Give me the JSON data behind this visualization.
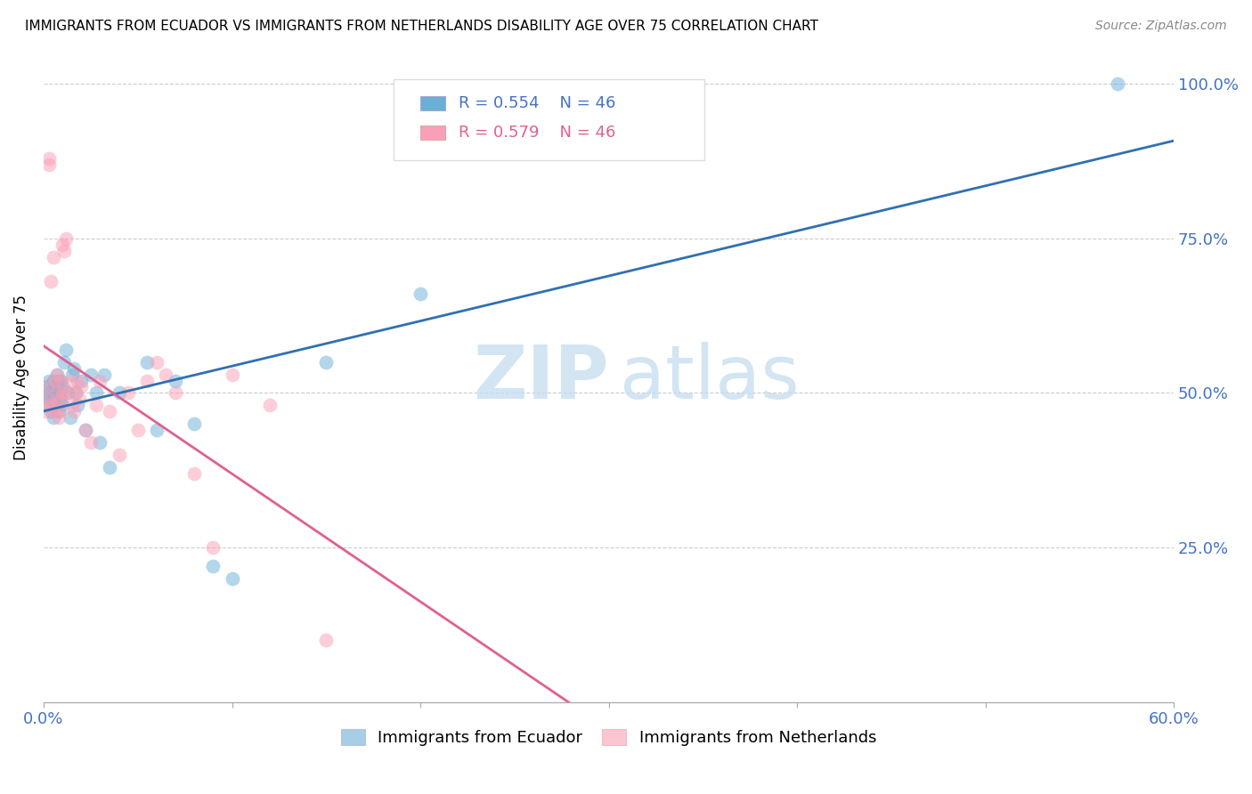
{
  "title": "IMMIGRANTS FROM ECUADOR VS IMMIGRANTS FROM NETHERLANDS DISABILITY AGE OVER 75 CORRELATION CHART",
  "source": "Source: ZipAtlas.com",
  "ylabel": "Disability Age Over 75",
  "color_ecuador": "#6baed6",
  "color_netherlands": "#fa9fb5",
  "color_ecuador_line": "#3070b0",
  "color_netherlands_line": "#e06090",
  "ecuador_x": [
    0.001,
    0.002,
    0.002,
    0.003,
    0.003,
    0.004,
    0.004,
    0.005,
    0.005,
    0.005,
    0.006,
    0.006,
    0.007,
    0.007,
    0.008,
    0.008,
    0.008,
    0.009,
    0.009,
    0.01,
    0.01,
    0.011,
    0.012,
    0.013,
    0.014,
    0.015,
    0.016,
    0.017,
    0.018,
    0.02,
    0.022,
    0.025,
    0.028,
    0.03,
    0.032,
    0.035,
    0.04,
    0.055,
    0.06,
    0.07,
    0.08,
    0.09,
    0.1,
    0.15,
    0.2,
    0.57
  ],
  "ecuador_y": [
    0.48,
    0.5,
    0.51,
    0.49,
    0.52,
    0.47,
    0.5,
    0.46,
    0.49,
    0.52,
    0.48,
    0.51,
    0.5,
    0.53,
    0.47,
    0.5,
    0.52,
    0.49,
    0.52,
    0.51,
    0.48,
    0.55,
    0.57,
    0.5,
    0.46,
    0.53,
    0.54,
    0.5,
    0.48,
    0.52,
    0.44,
    0.53,
    0.5,
    0.42,
    0.53,
    0.38,
    0.5,
    0.55,
    0.44,
    0.52,
    0.45,
    0.22,
    0.2,
    0.55,
    0.66,
    1.0
  ],
  "netherlands_x": [
    0.001,
    0.002,
    0.002,
    0.003,
    0.003,
    0.004,
    0.004,
    0.005,
    0.005,
    0.006,
    0.006,
    0.007,
    0.007,
    0.008,
    0.008,
    0.009,
    0.009,
    0.01,
    0.01,
    0.011,
    0.012,
    0.013,
    0.014,
    0.015,
    0.016,
    0.017,
    0.018,
    0.019,
    0.02,
    0.022,
    0.025,
    0.028,
    0.03,
    0.035,
    0.04,
    0.045,
    0.05,
    0.055,
    0.06,
    0.065,
    0.07,
    0.08,
    0.09,
    0.1,
    0.12,
    0.15
  ],
  "netherlands_y": [
    0.47,
    0.49,
    0.51,
    0.87,
    0.88,
    0.48,
    0.68,
    0.72,
    0.47,
    0.52,
    0.48,
    0.5,
    0.53,
    0.47,
    0.46,
    0.52,
    0.49,
    0.5,
    0.74,
    0.73,
    0.75,
    0.5,
    0.52,
    0.48,
    0.47,
    0.5,
    0.52,
    0.49,
    0.51,
    0.44,
    0.42,
    0.48,
    0.52,
    0.47,
    0.4,
    0.5,
    0.44,
    0.52,
    0.55,
    0.53,
    0.5,
    0.37,
    0.25,
    0.53,
    0.48,
    0.1
  ],
  "xlim": [
    0.0,
    0.6
  ],
  "ylim": [
    0.0,
    1.05
  ],
  "figsize": [
    14.06,
    8.92
  ],
  "dpi": 100
}
